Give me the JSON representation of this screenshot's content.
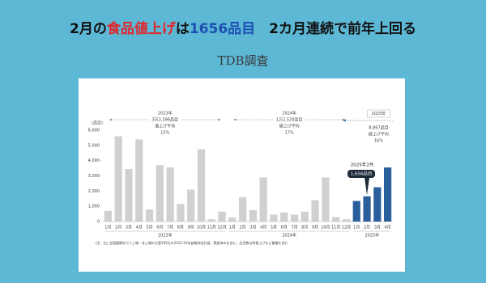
{
  "header": {
    "title_parts": [
      {
        "text": "2月の",
        "color": "#111111"
      },
      {
        "text": "食品値上げ",
        "color": "#e0262b"
      },
      {
        "text": "は",
        "color": "#111111"
      },
      {
        "text": "1656品目",
        "color": "#1c4fb3"
      },
      {
        "text": "　2カ月連続で前年上回る",
        "color": "#111111"
      }
    ],
    "subtitle": "TDB調査"
  },
  "chart_data": {
    "type": "bar",
    "y_label": "(品目)",
    "ylim": [
      0,
      6000
    ],
    "yticks": [
      0,
      {
        "value": 1000,
        "label": "1,000"
      },
      {
        "value": 2000,
        "label": "2,000"
      },
      {
        "value": 3000,
        "label": "3,000"
      },
      {
        "value": 4000,
        "label": "4,000"
      },
      {
        "value": 5000,
        "label": "5,000"
      },
      {
        "value": 6000,
        "label": "6,000"
      }
    ],
    "groups": [
      {
        "label": "2023年",
        "color": "#d0d0d0",
        "categories": [
          "1月",
          "2月",
          "3月",
          "4月",
          "5月",
          "6月",
          "7月",
          "8月",
          "9月",
          "10月",
          "11月",
          "12月"
        ],
        "values": [
          700,
          5600,
          3450,
          5400,
          800,
          3700,
          3550,
          1150,
          2100,
          4750,
          150,
          650
        ],
        "annotation": {
          "year": "2023年",
          "total": "3万2,396品目",
          "avg_label": "値上げ平均",
          "avg": "15%"
        }
      },
      {
        "label": "2024年",
        "color": "#d0d0d0",
        "categories": [
          "1月",
          "2月",
          "3月",
          "4月",
          "5月",
          "6月",
          "7月",
          "8月",
          "9月",
          "10月",
          "11月",
          "12月"
        ],
        "values": [
          270,
          1600,
          750,
          2900,
          450,
          600,
          450,
          650,
          1400,
          2900,
          300,
          150
        ],
        "annotation": {
          "year": "2024年",
          "total": "1万2,520品目",
          "avg_label": "値上げ平均",
          "avg": "17%"
        }
      },
      {
        "label": "2025年",
        "color": "#2a5f9e",
        "categories": [
          "1月",
          "2月",
          "3月",
          "4月"
        ],
        "values": [
          1350,
          1656,
          2250,
          3550
        ],
        "annotation": {
          "year": "2025年",
          "total": "8,867品目",
          "avg_label": "値上げ平均",
          "avg": "16%"
        },
        "callout": {
          "date": "2025年2月",
          "label": "1,656品目"
        }
      }
    ],
    "note": "（注）主に全国展開を行う上場・非上場の主要195社の2022-25年価格改定計画。実施済みを含む。品目数は再値上げなど重複を含む"
  }
}
